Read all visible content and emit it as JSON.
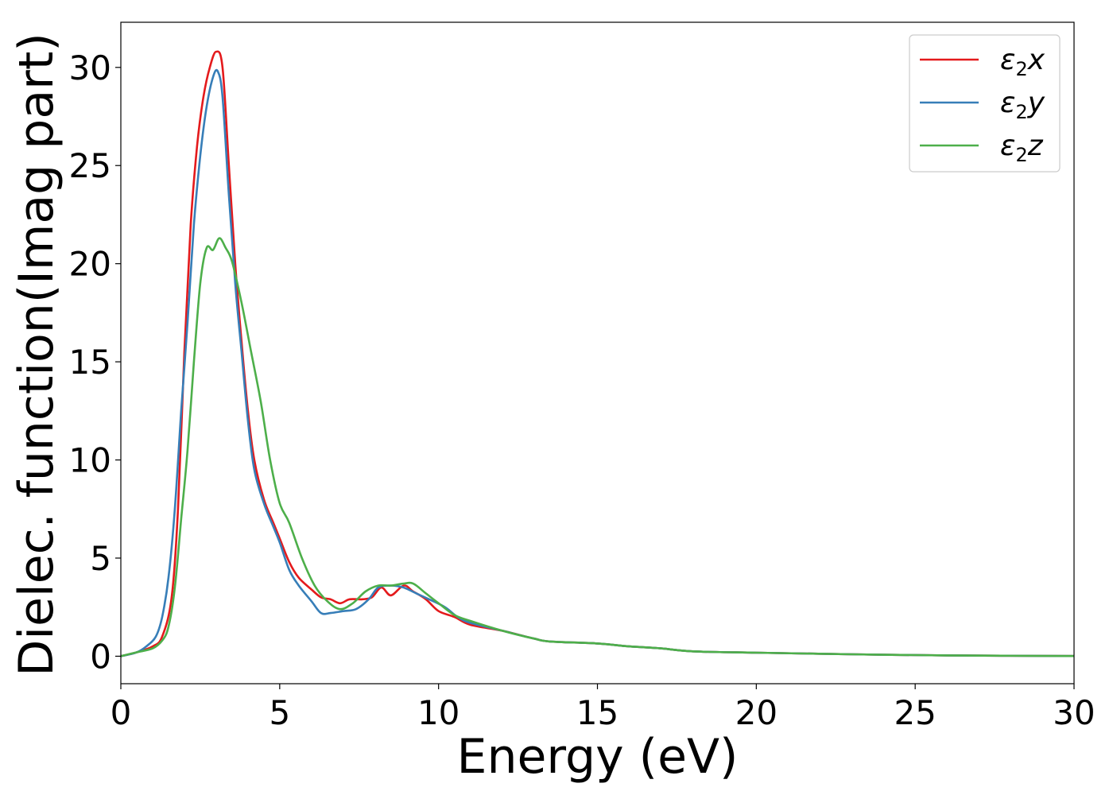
{
  "chart_data": {
    "type": "line",
    "title": "",
    "xlabel": "Energy (eV)",
    "ylabel": "Dielec. function(Imag part)",
    "xlim": [
      0,
      30
    ],
    "ylim": [
      -1.4,
      32.3
    ],
    "xticks": [
      0,
      5,
      10,
      15,
      20,
      25,
      30
    ],
    "yticks": [
      0,
      5,
      10,
      15,
      20,
      25,
      30
    ],
    "grid": false,
    "legend_position": "top-right",
    "series": [
      {
        "name": "ε2x",
        "symbol": "ε",
        "sub": "2",
        "axis": "x",
        "color": "#e41a1c",
        "points": [
          [
            0,
            0
          ],
          [
            0.5,
            0.2
          ],
          [
            1.0,
            0.5
          ],
          [
            1.3,
            1.0
          ],
          [
            1.6,
            3.0
          ],
          [
            1.8,
            7.5
          ],
          [
            2.0,
            15.5
          ],
          [
            2.2,
            22.0
          ],
          [
            2.4,
            26.0
          ],
          [
            2.6,
            28.5
          ],
          [
            2.8,
            30.0
          ],
          [
            3.0,
            30.8
          ],
          [
            3.2,
            30.0
          ],
          [
            3.4,
            25.0
          ],
          [
            3.6,
            20.0
          ],
          [
            3.8,
            16.0
          ],
          [
            4.0,
            12.5
          ],
          [
            4.2,
            10.0
          ],
          [
            4.5,
            8.0
          ],
          [
            4.8,
            6.8
          ],
          [
            5.0,
            6.0
          ],
          [
            5.3,
            4.8
          ],
          [
            5.6,
            4.0
          ],
          [
            6.0,
            3.4
          ],
          [
            6.3,
            3.0
          ],
          [
            6.6,
            2.9
          ],
          [
            6.9,
            2.7
          ],
          [
            7.2,
            2.9
          ],
          [
            7.6,
            2.9
          ],
          [
            7.9,
            3.0
          ],
          [
            8.2,
            3.5
          ],
          [
            8.5,
            3.1
          ],
          [
            8.9,
            3.6
          ],
          [
            9.2,
            3.3
          ],
          [
            9.6,
            2.9
          ],
          [
            10.0,
            2.3
          ],
          [
            10.5,
            2.0
          ],
          [
            11.0,
            1.6
          ],
          [
            12.0,
            1.3
          ],
          [
            13.0,
            0.9
          ],
          [
            13.5,
            0.75
          ],
          [
            15.0,
            0.65
          ],
          [
            16.0,
            0.5
          ],
          [
            17.0,
            0.4
          ],
          [
            18.0,
            0.25
          ],
          [
            20.0,
            0.18
          ],
          [
            23.0,
            0.1
          ],
          [
            26.0,
            0.04
          ],
          [
            30.0,
            0.01
          ]
        ]
      },
      {
        "name": "ε2y",
        "symbol": "ε",
        "sub": "2",
        "axis": "y",
        "color": "#377eb8",
        "points": [
          [
            0,
            0
          ],
          [
            0.5,
            0.2
          ],
          [
            0.8,
            0.5
          ],
          [
            1.1,
            1.0
          ],
          [
            1.3,
            2.0
          ],
          [
            1.5,
            4.0
          ],
          [
            1.7,
            7.5
          ],
          [
            1.9,
            12.5
          ],
          [
            2.1,
            17.0
          ],
          [
            2.3,
            22.0
          ],
          [
            2.5,
            25.5
          ],
          [
            2.7,
            28.0
          ],
          [
            2.9,
            29.5
          ],
          [
            3.05,
            29.8
          ],
          [
            3.2,
            28.5
          ],
          [
            3.4,
            23.5
          ],
          [
            3.6,
            19.0
          ],
          [
            3.8,
            15.5
          ],
          [
            4.0,
            12.0
          ],
          [
            4.2,
            9.5
          ],
          [
            4.5,
            7.8
          ],
          [
            4.8,
            6.6
          ],
          [
            5.0,
            5.8
          ],
          [
            5.3,
            4.4
          ],
          [
            5.6,
            3.6
          ],
          [
            6.0,
            2.8
          ],
          [
            6.3,
            2.2
          ],
          [
            6.6,
            2.2
          ],
          [
            7.0,
            2.3
          ],
          [
            7.4,
            2.4
          ],
          [
            7.8,
            2.9
          ],
          [
            8.1,
            3.5
          ],
          [
            8.5,
            3.6
          ],
          [
            8.9,
            3.5
          ],
          [
            9.3,
            3.2
          ],
          [
            9.7,
            2.9
          ],
          [
            10.2,
            2.5
          ],
          [
            10.6,
            2.0
          ],
          [
            11.0,
            1.7
          ],
          [
            12.0,
            1.3
          ],
          [
            13.0,
            0.9
          ],
          [
            13.5,
            0.75
          ],
          [
            15.0,
            0.65
          ],
          [
            16.0,
            0.5
          ],
          [
            17.0,
            0.4
          ],
          [
            18.0,
            0.25
          ],
          [
            20.0,
            0.18
          ],
          [
            23.0,
            0.1
          ],
          [
            26.0,
            0.04
          ],
          [
            30.0,
            0.01
          ]
        ]
      },
      {
        "name": "ε2z",
        "symbol": "ε",
        "sub": "2",
        "axis": "z",
        "color": "#4daf4a",
        "points": [
          [
            0,
            0
          ],
          [
            0.5,
            0.2
          ],
          [
            1.0,
            0.4
          ],
          [
            1.3,
            0.8
          ],
          [
            1.5,
            1.5
          ],
          [
            1.7,
            3.5
          ],
          [
            1.9,
            7.0
          ],
          [
            2.1,
            10.5
          ],
          [
            2.3,
            15.0
          ],
          [
            2.5,
            19.0
          ],
          [
            2.7,
            20.8
          ],
          [
            2.9,
            20.7
          ],
          [
            3.1,
            21.3
          ],
          [
            3.3,
            20.8
          ],
          [
            3.5,
            20.1
          ],
          [
            3.8,
            18.0
          ],
          [
            4.1,
            15.5
          ],
          [
            4.4,
            13.0
          ],
          [
            4.7,
            10.0
          ],
          [
            5.0,
            7.8
          ],
          [
            5.3,
            6.8
          ],
          [
            5.7,
            5.0
          ],
          [
            6.1,
            3.6
          ],
          [
            6.5,
            2.8
          ],
          [
            6.9,
            2.4
          ],
          [
            7.3,
            2.7
          ],
          [
            7.7,
            3.3
          ],
          [
            8.1,
            3.6
          ],
          [
            8.5,
            3.6
          ],
          [
            8.9,
            3.7
          ],
          [
            9.2,
            3.7
          ],
          [
            9.6,
            3.2
          ],
          [
            10.0,
            2.7
          ],
          [
            10.5,
            2.1
          ],
          [
            11.0,
            1.8
          ],
          [
            12.0,
            1.3
          ],
          [
            13.0,
            0.9
          ],
          [
            13.5,
            0.75
          ],
          [
            15.0,
            0.65
          ],
          [
            16.0,
            0.5
          ],
          [
            17.0,
            0.4
          ],
          [
            18.0,
            0.25
          ],
          [
            20.0,
            0.18
          ],
          [
            23.0,
            0.1
          ],
          [
            26.0,
            0.04
          ],
          [
            30.0,
            0.01
          ]
        ]
      }
    ]
  }
}
